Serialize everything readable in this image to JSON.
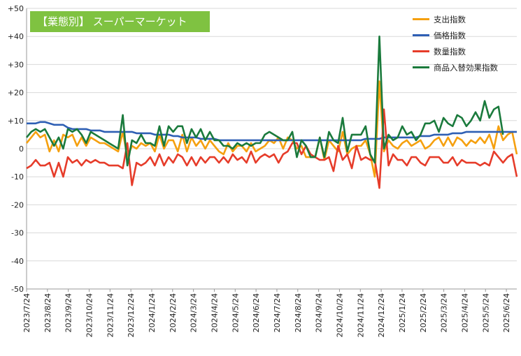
{
  "chart_data": {
    "type": "line",
    "title": "【業態別】 スーパーマーケット",
    "xlabel": "",
    "ylabel": "",
    "ylim": [
      -50,
      50
    ],
    "yticks": [
      "+50",
      "+40",
      "+30",
      "+20",
      "+10",
      "0",
      "-10",
      "-20",
      "-30",
      "-40",
      "-50"
    ],
    "yticks_values": [
      50,
      40,
      30,
      20,
      10,
      0,
      -10,
      -20,
      -30,
      -40,
      -50
    ],
    "x_tick_labels": [
      "2023/7/24",
      "2023/8/24",
      "2023/9/24",
      "2023/10/24",
      "2023/11/24",
      "2023/12/24",
      "2024/1/24",
      "2024/2/24",
      "2024/3/24",
      "2024/4/24",
      "2024/5/24",
      "2024/6/24",
      "2024/7/24",
      "2024/8/24",
      "2024/9/24",
      "2024/10/24",
      "2024/11/24",
      "2024/12/24",
      "2025/1/24",
      "2025/2/24",
      "2025/3/24",
      "2025/4/24",
      "2025/5/24",
      "2025/6/24"
    ],
    "grid": "horizontal",
    "legend_position": "top-right",
    "series": [
      {
        "name": "支出指数",
        "color": "#f5a00f",
        "values": [
          2,
          4,
          6,
          4,
          5,
          -1,
          3,
          -1,
          5,
          4,
          5,
          1,
          4,
          1,
          4,
          3,
          2,
          2,
          1,
          0,
          -1,
          6,
          -3,
          1,
          0,
          2,
          1,
          2,
          -1,
          5,
          0,
          3,
          3,
          -1,
          5,
          -1,
          4,
          1,
          3,
          0,
          3,
          1,
          -1,
          -2,
          2,
          -1,
          1,
          1,
          -1,
          2,
          -1,
          0,
          1,
          3,
          2,
          4,
          0,
          4,
          3,
          0,
          1,
          -3,
          -3,
          -3,
          4,
          -4,
          3,
          1,
          -1,
          6,
          -2,
          0,
          1,
          1,
          3,
          -2,
          -10,
          24,
          -1,
          3,
          1,
          0,
          2,
          3,
          1,
          2,
          3,
          0,
          1,
          3,
          4,
          1,
          4,
          1,
          4,
          3,
          1,
          3,
          2,
          4,
          2,
          5,
          0,
          8,
          3,
          5,
          6,
          -2
        ]
      },
      {
        "name": "価格指数",
        "color": "#2e5fb4",
        "values": [
          9,
          9,
          9,
          9.5,
          9.5,
          9,
          8.5,
          8.5,
          8.5,
          7.5,
          7,
          7,
          7,
          7,
          6.5,
          6.5,
          6.5,
          6,
          6,
          6,
          6,
          6,
          6,
          6,
          5.5,
          5.5,
          5.5,
          5.5,
          5,
          5,
          5,
          5,
          4.5,
          4.5,
          4,
          4,
          4,
          4,
          3.5,
          3.5,
          3.5,
          3.5,
          3,
          3,
          3,
          3,
          3,
          3,
          3,
          3,
          3,
          3,
          3,
          3,
          3,
          3,
          3,
          3,
          3,
          3,
          3,
          3,
          3,
          3,
          3,
          3,
          3,
          3,
          3,
          3,
          3,
          3,
          3,
          3,
          3.5,
          3.5,
          3.5,
          3.5,
          4,
          4,
          4,
          4,
          4,
          4,
          4,
          4,
          4.5,
          4.5,
          4.5,
          5,
          5,
          5,
          5,
          5.5,
          5.5,
          5.5,
          6,
          6,
          6,
          6,
          6,
          6,
          6,
          6,
          6,
          6,
          6,
          6
        ]
      },
      {
        "name": "数量指数",
        "color": "#e63c2a",
        "values": [
          -7,
          -6,
          -4,
          -6,
          -6,
          -5,
          -10,
          -5,
          -10,
          -3,
          -5,
          -4,
          -6,
          -4,
          -5,
          -4,
          -5,
          -5,
          -6,
          -6,
          -6,
          -7,
          2,
          -13,
          -5,
          -6,
          -5,
          -3,
          -6,
          -2,
          -6,
          -3,
          -5,
          -2,
          -3,
          -6,
          -3,
          -6,
          -3,
          -5,
          -3,
          -3,
          -5,
          -3,
          -5,
          -2,
          -4,
          -3,
          -5,
          -1,
          -5,
          -3,
          -2,
          -3,
          -2,
          -5,
          -2,
          -1,
          2,
          2,
          -2,
          1,
          -2,
          -3,
          -4,
          -4,
          -3,
          -8,
          1,
          -4,
          -2,
          -7,
          1,
          -4,
          -3,
          -4,
          -4,
          -14,
          14,
          -6,
          -2,
          -4,
          -4,
          -6,
          -3,
          -3,
          -5,
          -6,
          -3,
          -3,
          -3,
          -5,
          -5,
          -3,
          -6,
          -4,
          -5,
          -5,
          -5,
          -6,
          -5,
          -6,
          -1,
          -3,
          -5,
          -3,
          -2,
          -10
        ]
      },
      {
        "name": "商品入替効果指数",
        "color": "#1a7a3c",
        "values": [
          4,
          6,
          7,
          6,
          7,
          4,
          1,
          4,
          0,
          7,
          6,
          7,
          5,
          2,
          6,
          5,
          4,
          3,
          2,
          1,
          0,
          12,
          -6,
          3,
          2,
          5,
          2,
          2,
          1,
          8,
          1,
          8,
          6,
          8,
          8,
          2,
          7,
          4,
          7,
          3,
          6,
          3,
          3,
          1,
          1,
          0,
          2,
          1,
          2,
          1,
          2,
          2,
          5,
          6,
          5,
          4,
          3,
          3,
          6,
          -3,
          3,
          1,
          -3,
          -3,
          4,
          -3,
          6,
          3,
          2,
          11,
          -1,
          5,
          5,
          5,
          8,
          -2,
          -5,
          40,
          0,
          5,
          3,
          4,
          8,
          5,
          6,
          3,
          5,
          9,
          9,
          10,
          6,
          11,
          9,
          8,
          12,
          11,
          8,
          10,
          13,
          10,
          17,
          11,
          14,
          15,
          5
        ]
      }
    ]
  }
}
